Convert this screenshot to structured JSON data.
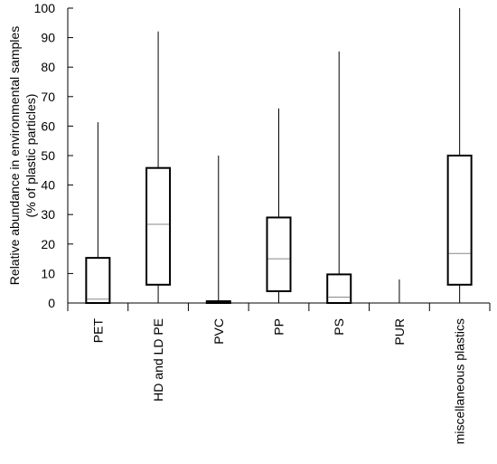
{
  "chart_data": {
    "type": "box",
    "title": "",
    "xlabel": "",
    "ylabel": "Relative abundance in environmental samples",
    "ylabel2": "(% of plastic particles)",
    "ylim": [
      0,
      100
    ],
    "yticks": [
      0,
      10,
      20,
      30,
      40,
      50,
      60,
      70,
      80,
      90,
      100
    ],
    "grid": false,
    "categories": [
      "PET",
      "HD and LD PE",
      "PVC",
      "PP",
      "PS",
      "PUR",
      "miscellaneous plastics"
    ],
    "boxes": [
      {
        "category": "PET",
        "min": 0,
        "q1": 0,
        "median": 1.3,
        "q3": 15.3,
        "max": 61.3
      },
      {
        "category": "HD and LD PE",
        "min": 0,
        "q1": 6.2,
        "median": 26.7,
        "q3": 45.8,
        "max": 92.1
      },
      {
        "category": "PVC",
        "min": 0,
        "q1": 0,
        "median": 0.2,
        "q3": 0.6,
        "max": 50.0
      },
      {
        "category": "PP",
        "min": 0,
        "q1": 4.0,
        "median": 15.0,
        "q3": 29.0,
        "max": 66.0
      },
      {
        "category": "PS",
        "min": 0,
        "q1": 0,
        "median": 2.0,
        "q3": 9.7,
        "max": 85.3
      },
      {
        "category": "PUR",
        "min": 0,
        "q1": 0,
        "median": 0,
        "q3": 0,
        "max": 8.0
      },
      {
        "category": "miscellaneous plastics",
        "min": 0,
        "q1": 6.2,
        "median": 16.8,
        "q3": 50.0,
        "max": 100
      }
    ]
  }
}
